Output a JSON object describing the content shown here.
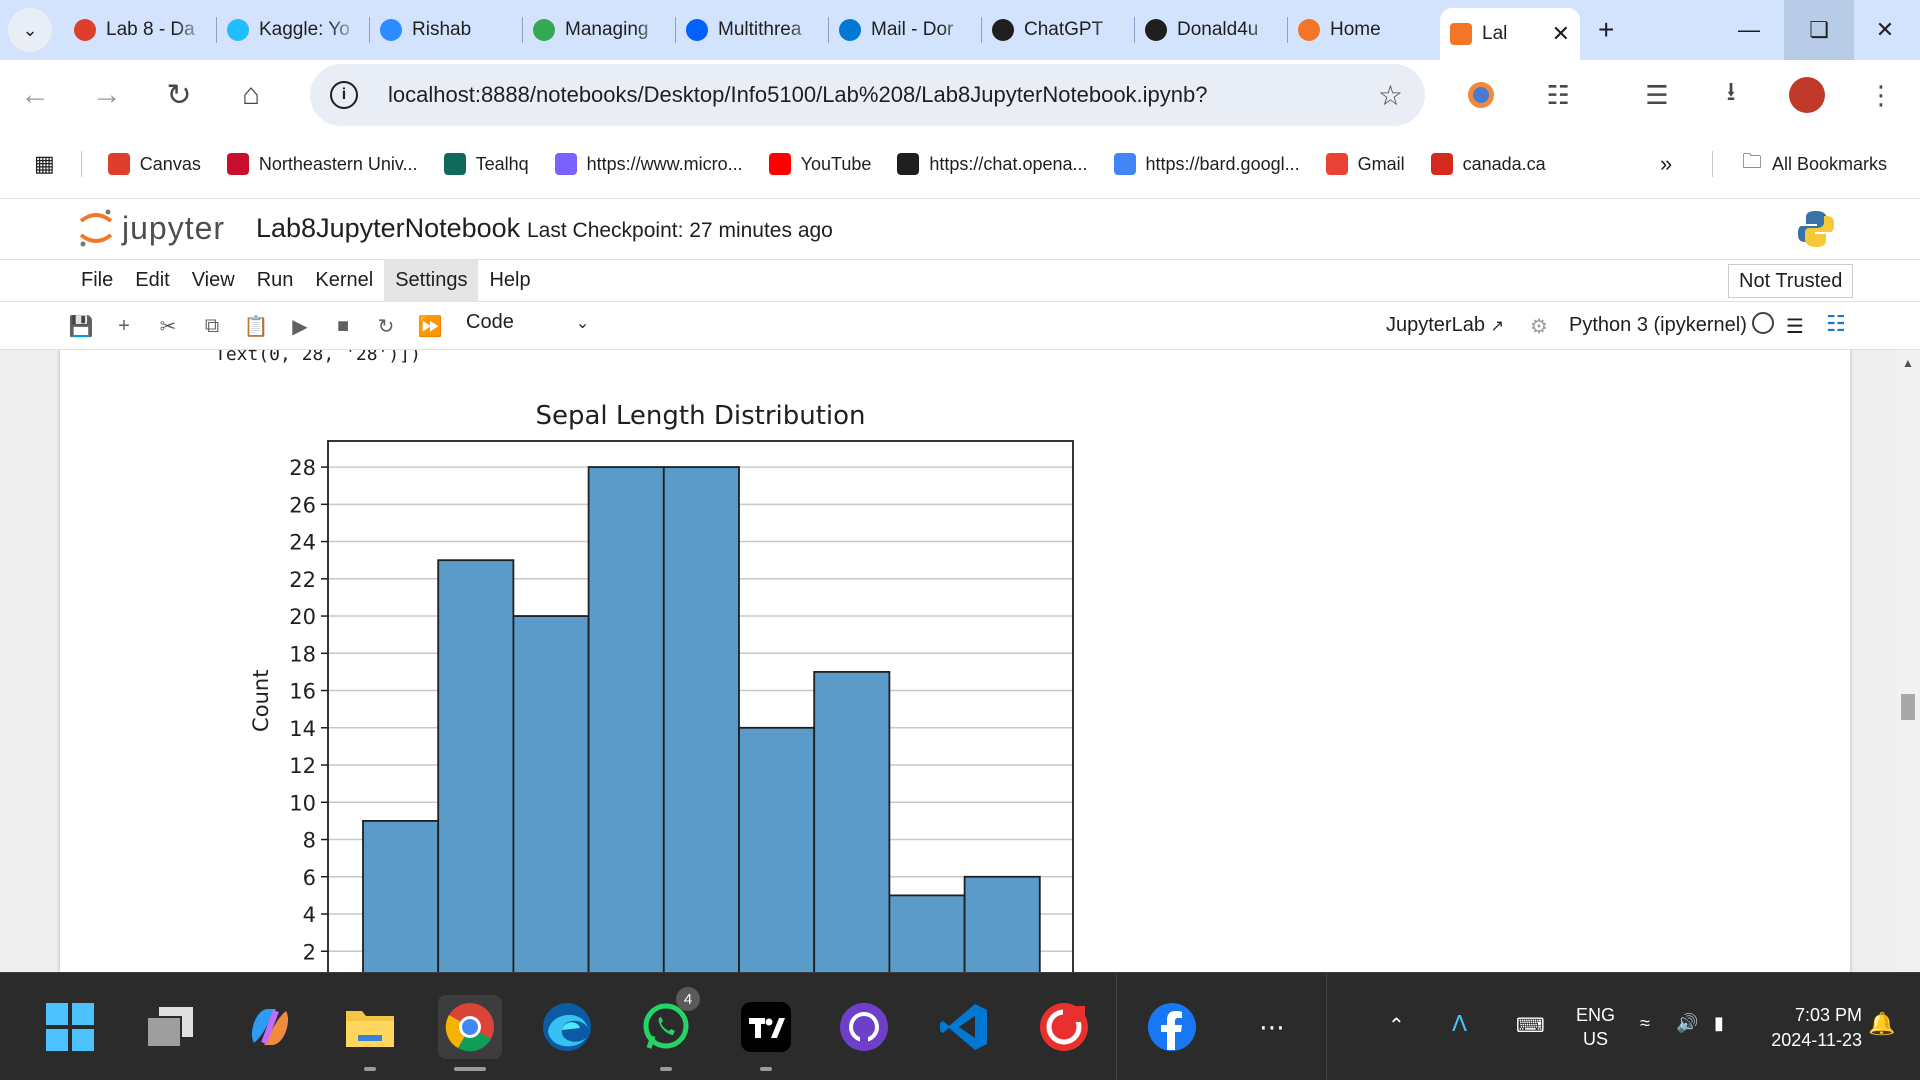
{
  "browser": {
    "tabs": [
      {
        "label": "Lab 8 - Da",
        "icon": "canvas-icon",
        "color": "#e03e2d"
      },
      {
        "label": "Kaggle: Yo",
        "icon": "kaggle-icon",
        "color": "#20beff"
      },
      {
        "label": "Rishab",
        "icon": "zoom-icon",
        "color": "#2d8cff"
      },
      {
        "label": "Managing",
        "icon": "loading-icon",
        "color": "#34a853"
      },
      {
        "label": "Multithrea",
        "icon": "dropbox-icon",
        "color": "#0061fe"
      },
      {
        "label": "Mail - Dor",
        "icon": "outlook-icon",
        "color": "#0078d4"
      },
      {
        "label": "ChatGPT",
        "icon": "chatgpt-icon",
        "color": "#1f1f1f"
      },
      {
        "label": "Donald4u",
        "icon": "github-icon",
        "color": "#1f1f1f"
      },
      {
        "label": "Home",
        "icon": "jupyter-icon",
        "color": "#f37626"
      }
    ],
    "active_tab": {
      "label": "Lal",
      "icon": "notebook-icon",
      "color": "#f37626"
    },
    "url": "localhost:8888/notebooks/Desktop/Info5100/Lab%208/Lab8JupyterNotebook.ipynb?",
    "bookmarks": [
      {
        "label": "Canvas",
        "icon": "canvas-icon",
        "color": "#e03e2d"
      },
      {
        "label": "Northeastern Univ...",
        "icon": "northeastern-icon",
        "color": "#c8102e"
      },
      {
        "label": "Tealhq",
        "icon": "tealhq-icon",
        "color": "#0e6b5c"
      },
      {
        "label": "https://www.micro...",
        "icon": "copilot-icon",
        "color": "#7b61ff"
      },
      {
        "label": "YouTube",
        "icon": "youtube-icon",
        "color": "#ff0000"
      },
      {
        "label": "https://chat.opena...",
        "icon": "chatgpt-icon",
        "color": "#1f1f1f"
      },
      {
        "label": "https://bard.googl...",
        "icon": "bard-icon",
        "color": "#4285f4"
      },
      {
        "label": "Gmail",
        "icon": "gmail-icon",
        "color": "#ea4335"
      },
      {
        "label": "canada.ca",
        "icon": "maple-leaf-icon",
        "color": "#d52b1e"
      }
    ],
    "all_bookmarks": "All Bookmarks"
  },
  "jupyter": {
    "logo_text": "jupyter",
    "notebook_title": "Lab8JupyterNotebook",
    "checkpoint": "Last Checkpoint: 27 minutes ago",
    "menu": [
      "File",
      "Edit",
      "View",
      "Run",
      "Kernel",
      "Settings",
      "Help"
    ],
    "open_menu": "Settings",
    "trust": "Not Trusted",
    "cell_type": "Code",
    "jupyterlab_link": "JupyterLab",
    "kernel": "Python 3 (ipykernel)"
  },
  "output": {
    "text_line": "Text(0, 28, '28')])"
  },
  "chart_data": {
    "type": "bar",
    "title": "Sepal Length Distribution",
    "ylabel": "Count",
    "xlabel": "",
    "values": [
      9,
      23,
      20,
      28,
      28,
      14,
      17,
      5,
      6
    ],
    "ylim": [
      0,
      29.4
    ],
    "yticks": [
      2,
      4,
      6,
      8,
      10,
      12,
      14,
      16,
      18,
      20,
      22,
      24,
      26,
      28
    ],
    "grid": true,
    "bar_color": "#5b9bc9",
    "visible_ymin": 0
  },
  "taskbar": {
    "apps": [
      "windows-start-icon",
      "task-view-icon",
      "copilot-icon",
      "file-explorer-icon",
      "chrome-icon",
      "edge-icon",
      "whatsapp-icon",
      "tradingview-icon",
      "github-desktop-icon",
      "vscode-icon",
      "cisco-icon",
      "facebook-icon",
      "more-icon"
    ],
    "whatsapp_badge": "4",
    "lang_top": "ENG",
    "lang_bottom": "US",
    "time": "7:03 PM",
    "date": "2024-11-23"
  }
}
